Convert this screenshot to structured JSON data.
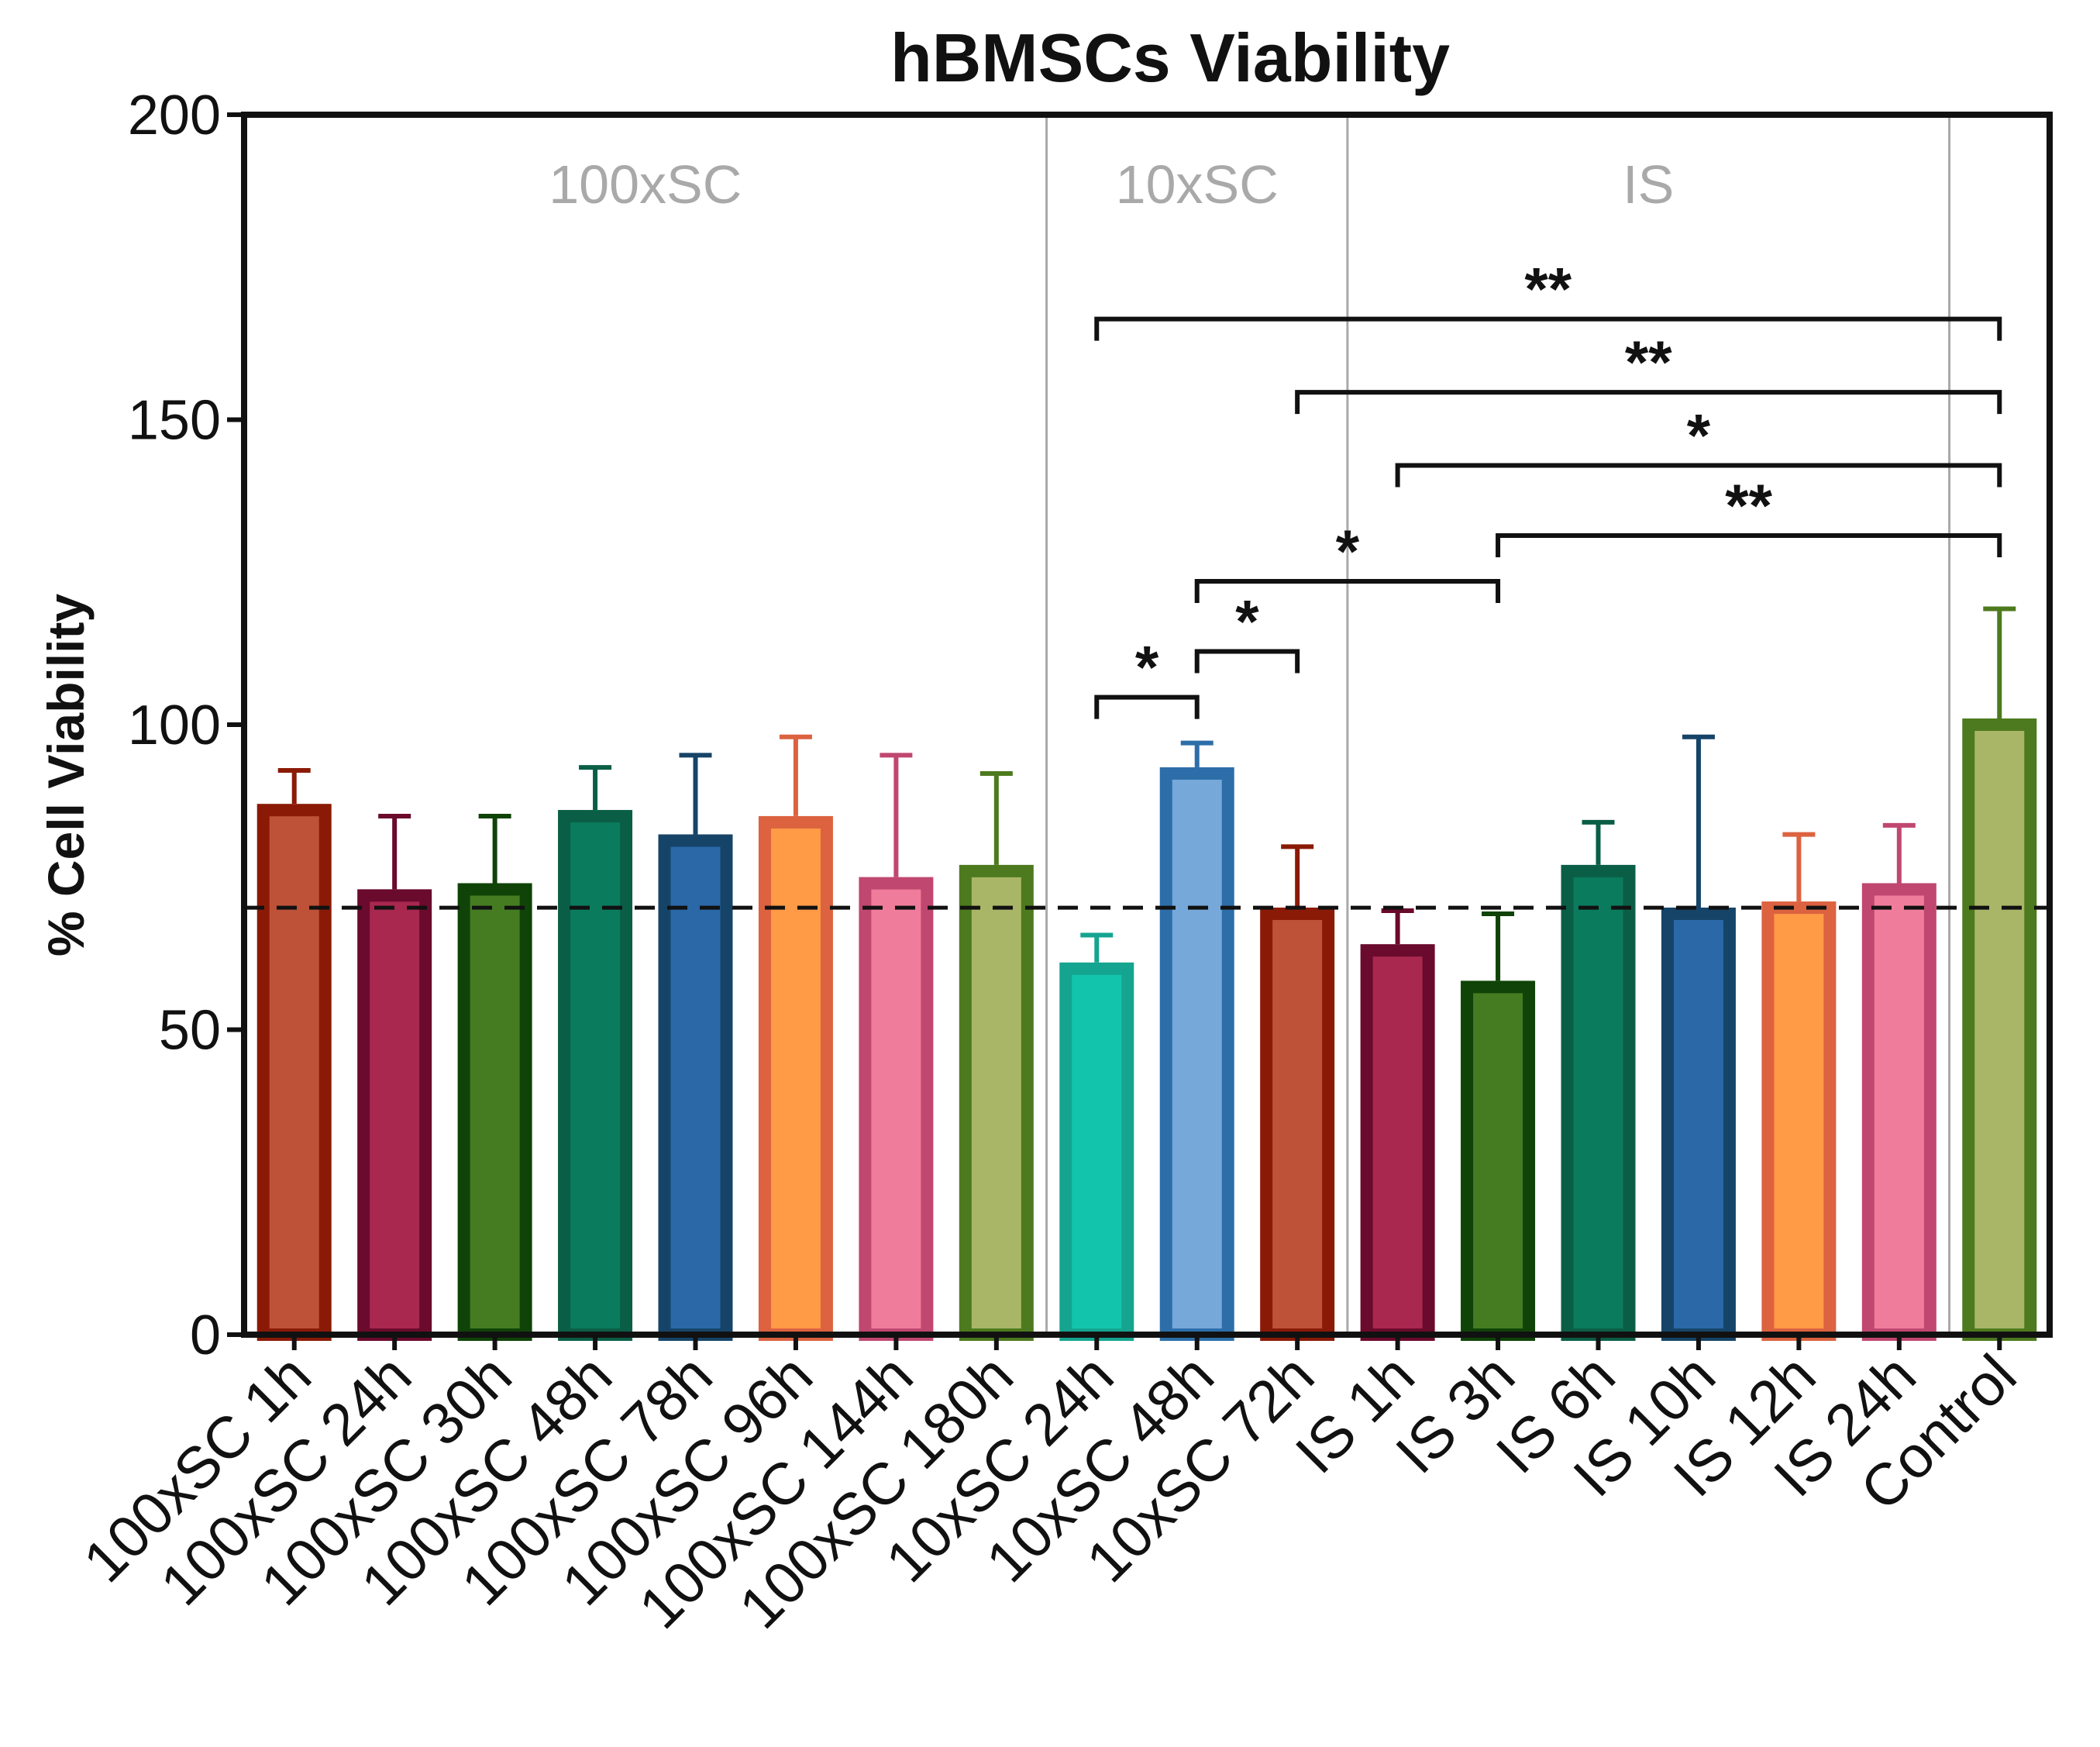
{
  "chart_data": {
    "type": "bar",
    "title": "hBMSCs Viability",
    "xlabel": "",
    "ylabel": "% Cell Viability",
    "ylim": [
      0,
      200
    ],
    "yticks": [
      0,
      50,
      100,
      150,
      200
    ],
    "threshold": 70,
    "categories": [
      "100xSC 1h",
      "100xSC 24h",
      "100xSC 30h",
      "100xSC 48h",
      "100xSC 78h",
      "100xSC 96h",
      "100xSC 144h",
      "100xSC 180h",
      "10xSC 24h",
      "10xSC 48h",
      "10xSC 72h",
      "IS 1h",
      "IS 3h",
      "IS 6h",
      "IS 10h",
      "IS 12h",
      "IS 24h",
      "Control"
    ],
    "values": [
      86,
      72,
      73,
      85,
      81,
      84,
      74,
      76,
      60,
      92,
      69,
      63,
      57,
      76,
      69,
      70,
      73,
      100
    ],
    "errors": [
      6.5,
      13,
      12,
      8,
      14,
      14,
      21,
      16,
      5.5,
      5,
      11,
      6.5,
      12,
      8,
      29,
      12,
      10.5,
      19
    ],
    "groups": [
      {
        "label": "100xSC",
        "start": 0,
        "end": 7
      },
      {
        "label": "10xSC",
        "start": 8,
        "end": 10
      },
      {
        "label": "IS",
        "start": 11,
        "end": 16
      }
    ],
    "significance": [
      {
        "from": 8,
        "to": 9,
        "level": 104.5,
        "label": "*"
      },
      {
        "from": 9,
        "to": 10,
        "level": 112,
        "label": "*"
      },
      {
        "from": 9,
        "to": 12,
        "level": 123.5,
        "label": "*"
      },
      {
        "from": 12,
        "to": 17,
        "level": 131,
        "label": "**"
      },
      {
        "from": 11,
        "to": 17,
        "level": 142.5,
        "label": "*"
      },
      {
        "from": 10,
        "to": 17,
        "level": 154.5,
        "label": "**"
      },
      {
        "from": 8,
        "to": 17,
        "level": 166.5,
        "label": "**"
      }
    ]
  },
  "colors": {
    "edges": [
      "#8a1a06",
      "#6a0a2c",
      "#0f4308",
      "#0b5e46",
      "#164468",
      "#dc6240",
      "#c04770",
      "#4d7a1e",
      "#15a48f",
      "#2d6ea9",
      "#8a1a06",
      "#6a0a2c",
      "#0f4308",
      "#0b5e46",
      "#164468",
      "#dc6240",
      "#c04770",
      "#4d7a1e"
    ],
    "fills": [
      "#bd5238",
      "#a8284f",
      "#457c22",
      "#0a7b5d",
      "#2a68a8",
      "#ff9a46",
      "#f07c9c",
      "#aab667",
      "#13c4ad",
      "#76a8d9",
      "#bd5238",
      "#a8284f",
      "#457c22",
      "#0a7b5d",
      "#2a68a8",
      "#ff9a46",
      "#f07c9c",
      "#aab667"
    ],
    "axis": "#111111",
    "divider": "#a9a9a9",
    "group_label": "#a9a9a9"
  }
}
